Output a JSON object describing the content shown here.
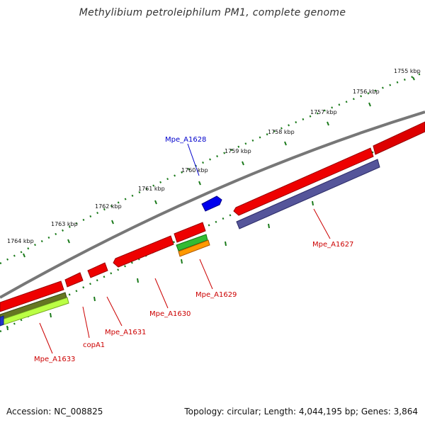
{
  "title": "Methylibium petroleiphilum PM1, complete genome",
  "footer": {
    "accession": "Accession: NC_008825",
    "topology": "Topology: circular; Length: 4,044,195 bp; Genes: 3,864"
  },
  "scale_labels": [
    "1755 kbp",
    "1756 kbp",
    "1757 kbp",
    "1758 kbp",
    "1759 kbp",
    "1760 kbp",
    "1761 kbp",
    "1762 kbp",
    "1763 kbp",
    "1764 kbp"
  ],
  "genes": [
    {
      "label": "Mpe_A1628",
      "color": "#0000cc"
    },
    {
      "label": "Mpe_A1627",
      "color": "#cc0000"
    },
    {
      "label": "Mpe_A1629",
      "color": "#cc0000"
    },
    {
      "label": "Mpe_A1630",
      "color": "#cc0000"
    },
    {
      "label": "Mpe_A1631",
      "color": "#cc0000"
    },
    {
      "label": "copA1",
      "color": "#cc0000"
    },
    {
      "label": "Mpe_A1633",
      "color": "#cc0000"
    }
  ]
}
